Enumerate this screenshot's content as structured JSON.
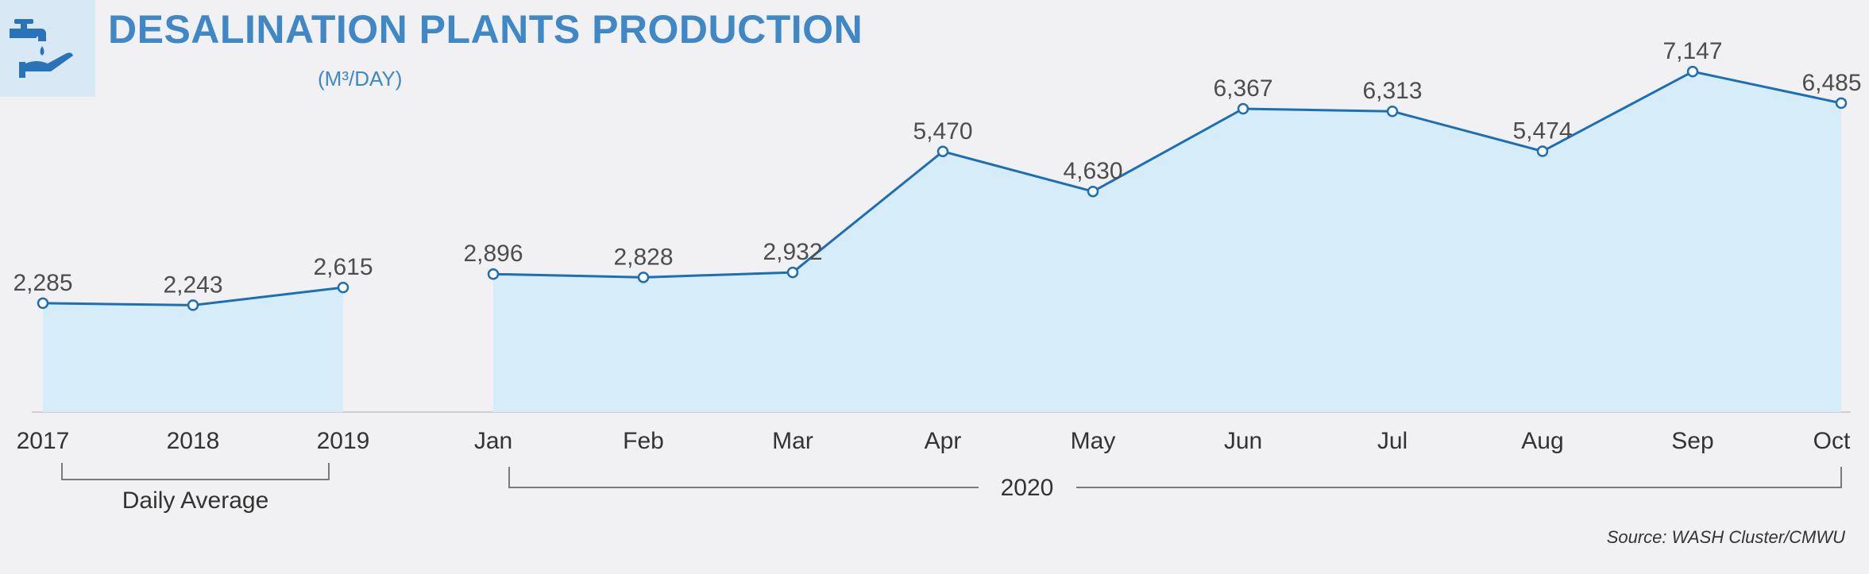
{
  "header": {
    "title": "DESALINATION PLANTS PRODUCTION",
    "subtitle": "(M³/DAY)",
    "icon": "water-tap-hand-icon"
  },
  "source": "Source: WASH Cluster/CMWU",
  "colors": {
    "accent": "#3f88c5",
    "line": "#1d6fb3",
    "fill": "#d7ecf9",
    "background": "#f1f1f3"
  },
  "chart_data": {
    "type": "area",
    "ylim": [
      0,
      7500
    ],
    "groups": [
      {
        "label": "Daily Average",
        "categories": [
          "2017",
          "2018",
          "2019"
        ],
        "values": [
          2285,
          2243,
          2615
        ],
        "value_labels": [
          "2,285",
          "2,243",
          "2,615"
        ]
      },
      {
        "label": "2020",
        "categories": [
          "Jan",
          "Feb",
          "Mar",
          "Apr",
          "May",
          "Jun",
          "Jul",
          "Aug",
          "Sep",
          "Oct"
        ],
        "values": [
          2896,
          2828,
          2932,
          5470,
          4630,
          6367,
          6313,
          5474,
          7147,
          6485
        ],
        "value_labels": [
          "2,896",
          "2,828",
          "2,932",
          "5,470",
          "4,630",
          "6,367",
          "6,313",
          "5,474",
          "7,147",
          "6,485"
        ]
      }
    ]
  }
}
